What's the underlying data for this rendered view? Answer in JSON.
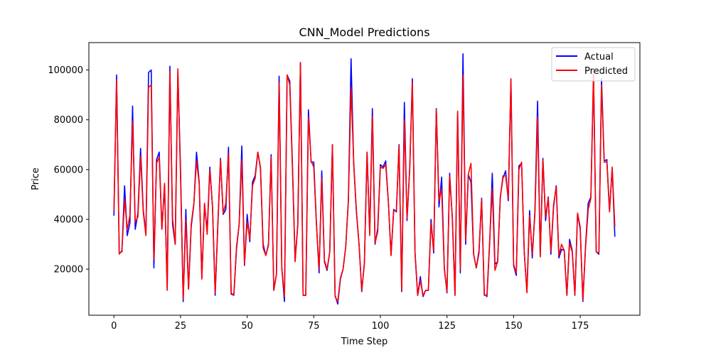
{
  "chart_data": {
    "type": "line",
    "title": "CNN_Model Predictions",
    "xlabel": "Time Step",
    "ylabel": "Price",
    "xlim": [
      -9.4,
      197.4
    ],
    "ylim": [
      1500,
      111000
    ],
    "xticks": [
      0,
      25,
      50,
      75,
      100,
      125,
      150,
      175
    ],
    "yticks": [
      20000,
      40000,
      60000,
      80000,
      100000
    ],
    "xtick_labels": [
      "0",
      "25",
      "50",
      "75",
      "100",
      "125",
      "150",
      "175"
    ],
    "ytick_labels": [
      "20000",
      "40000",
      "60000",
      "80000",
      "100000"
    ],
    "legend_position": "top-right",
    "grid": false,
    "series": [
      {
        "name": "Actual",
        "color": "#0000ff",
        "values": [
          41500,
          98000,
          26500,
          27000,
          53500,
          33500,
          38500,
          85500,
          36000,
          42500,
          68500,
          44000,
          34000,
          99000,
          100000,
          20500,
          64000,
          67000,
          36000,
          54000,
          12000,
          101500,
          38000,
          30000,
          99000,
          60000,
          7000,
          44000,
          12000,
          37000,
          46000,
          67000,
          55000,
          16500,
          46000,
          35500,
          61000,
          45000,
          9500,
          37500,
          64500,
          42000,
          44000,
          69000,
          10000,
          9500,
          28000,
          38000,
          69500,
          21500,
          42000,
          31000,
          55000,
          57500,
          67000,
          60500,
          30000,
          25500,
          30000,
          66000,
          11500,
          18000,
          97500,
          20500,
          7000,
          98000,
          95500,
          62000,
          23500,
          38000,
          103000,
          9500,
          9500,
          84000,
          63000,
          63000,
          38500,
          18500,
          59500,
          23000,
          19500,
          27000,
          70000,
          9500,
          6000,
          16000,
          20000,
          29000,
          48000,
          104500,
          62000,
          43000,
          30000,
          11000,
          22500,
          67000,
          34500,
          84500,
          30000,
          36500,
          62000,
          61000,
          63500,
          47000,
          25500,
          44000,
          43000,
          70000,
          11000,
          87000,
          39500,
          60000,
          96500,
          26500,
          9500,
          17000,
          9000,
          11500,
          11500,
          40000,
          26500,
          84500,
          45000,
          57000,
          20500,
          10500,
          58500,
          40500,
          9500,
          83000,
          18500,
          106500,
          30000,
          58000,
          55000,
          26000,
          20500,
          26500,
          48500,
          10000,
          9000,
          30000,
          58500,
          22000,
          23000,
          49000,
          56500,
          59500,
          47500,
          96000,
          21500,
          17500,
          61500,
          62500,
          26500,
          11000,
          43500,
          24500,
          43500,
          87500,
          25000,
          64500,
          39500,
          49000,
          26000,
          45000,
          53500,
          24500,
          28000,
          27500,
          9500,
          32000,
          27500,
          9500,
          42500,
          36000,
          7000,
          29500,
          46500,
          49000,
          98000,
          27000,
          26000,
          96500,
          63500,
          64000,
          43500,
          60500,
          33000
        ]
      },
      {
        "name": "Predicted",
        "color": "#ff0000",
        "values": [
          43500,
          96000,
          26000,
          27500,
          48000,
          36000,
          41500,
          79500,
          39000,
          41000,
          65500,
          43000,
          33500,
          93000,
          94000,
          24000,
          62500,
          65000,
          36000,
          54500,
          11500,
          99500,
          40500,
          30000,
          100500,
          57000,
          8000,
          40000,
          12000,
          38000,
          46500,
          63500,
          54500,
          16000,
          46500,
          34000,
          60000,
          45000,
          10500,
          38000,
          64000,
          42500,
          46500,
          66500,
          10500,
          9500,
          29000,
          38000,
          64000,
          22000,
          39000,
          32000,
          53500,
          56500,
          67000,
          61000,
          28500,
          25500,
          29500,
          65000,
          11500,
          18000,
          95000,
          20500,
          9000,
          98000,
          94000,
          60000,
          23000,
          37500,
          103000,
          9500,
          9500,
          81000,
          63500,
          61000,
          38000,
          20000,
          56500,
          23500,
          20000,
          27000,
          70000,
          9000,
          7000,
          16500,
          20000,
          29000,
          47500,
          93000,
          62500,
          43500,
          30000,
          11500,
          22000,
          67000,
          33500,
          81500,
          30500,
          35000,
          61000,
          60500,
          62000,
          47000,
          25500,
          43500,
          43500,
          69500,
          11500,
          80000,
          40500,
          60000,
          95000,
          27000,
          9500,
          15500,
          9500,
          11500,
          11500,
          38500,
          27500,
          84000,
          47500,
          52000,
          20000,
          11000,
          57500,
          41000,
          9500,
          83500,
          20000,
          98000,
          31500,
          58000,
          62500,
          26000,
          20500,
          27500,
          48000,
          9500,
          9500,
          31000,
          52500,
          19500,
          23000,
          48500,
          57500,
          57500,
          48500,
          96500,
          22000,
          18500,
          60000,
          63000,
          27000,
          10500,
          41500,
          26000,
          42000,
          81000,
          25000,
          64000,
          41000,
          48500,
          27000,
          46000,
          53000,
          25500,
          30000,
          27500,
          9500,
          30500,
          27000,
          9500,
          42500,
          37000,
          7500,
          28500,
          44000,
          48500,
          100000,
          27000,
          26500,
          94000,
          63000,
          63000,
          43000,
          61000,
          37000
        ]
      }
    ]
  }
}
